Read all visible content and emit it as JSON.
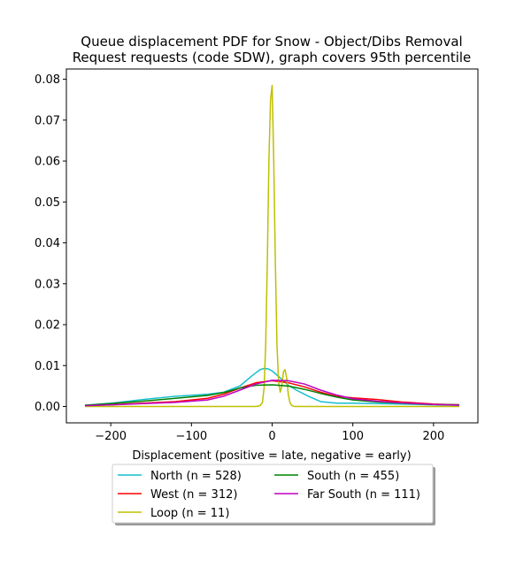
{
  "chart_data": {
    "type": "line",
    "title": "Queue displacement PDF for Snow - Object/Dibs Removal\nRequest  requests (code SDW), graph covers 95th percentile",
    "xlabel": "Displacement (positive = late, negative = early)",
    "ylabel": "",
    "xlim": [
      -255,
      255
    ],
    "ylim": [
      -0.004,
      0.0825
    ],
    "x_ticks": [
      -200,
      -100,
      0,
      100,
      200
    ],
    "x_tick_labels": [
      "−200",
      "−100",
      "0",
      "100",
      "200"
    ],
    "y_ticks": [
      0.0,
      0.01,
      0.02,
      0.03,
      0.04,
      0.05,
      0.06,
      0.07,
      0.08
    ],
    "y_tick_labels": [
      "0.00",
      "0.01",
      "0.02",
      "0.03",
      "0.04",
      "0.05",
      "0.06",
      "0.07",
      "0.08"
    ],
    "grid": false,
    "legend_placement": "below",
    "series": [
      {
        "name": "North (n = 528)",
        "color": "#17becf",
        "x": [
          -232,
          -200,
          -160,
          -120,
          -80,
          -60,
          -40,
          -25,
          -15,
          -10,
          -5,
          0,
          10,
          20,
          30,
          45,
          60,
          80,
          100,
          130,
          160,
          200,
          232
        ],
        "y": [
          0.0003,
          0.0008,
          0.0017,
          0.0025,
          0.003,
          0.0035,
          0.005,
          0.0075,
          0.009,
          0.0093,
          0.0092,
          0.0087,
          0.007,
          0.0052,
          0.004,
          0.0025,
          0.0012,
          0.0008,
          0.0008,
          0.0007,
          0.0006,
          0.0004,
          0.0003
        ]
      },
      {
        "name": "West (n = 312)",
        "color": "#ff0000",
        "x": [
          -232,
          -200,
          -160,
          -120,
          -80,
          -60,
          -40,
          -20,
          0,
          20,
          40,
          60,
          80,
          100,
          130,
          160,
          200,
          232
        ],
        "y": [
          0.0002,
          0.0004,
          0.0008,
          0.0012,
          0.002,
          0.003,
          0.0045,
          0.0058,
          0.0063,
          0.0058,
          0.0048,
          0.0035,
          0.0025,
          0.0021,
          0.0017,
          0.0011,
          0.0006,
          0.0004
        ]
      },
      {
        "name": "Loop (n = 11)",
        "color": "#bfbf00",
        "x": [
          -232,
          -100,
          -30,
          -20,
          -15,
          -12,
          -10,
          -8,
          -6,
          -4,
          -2,
          0,
          2,
          4,
          6,
          8,
          10,
          12,
          14,
          16,
          18,
          20,
          22,
          24,
          26,
          28,
          32,
          50,
          100,
          232
        ],
        "y": [
          0.0,
          0.0,
          0.0,
          0.0,
          0.0002,
          0.001,
          0.0045,
          0.015,
          0.035,
          0.06,
          0.075,
          0.0785,
          0.06,
          0.035,
          0.015,
          0.006,
          0.0035,
          0.005,
          0.0085,
          0.009,
          0.007,
          0.003,
          0.001,
          0.0003,
          0.0001,
          0.0,
          0.0,
          0.0,
          0.0,
          0.0
        ]
      },
      {
        "name": "South (n = 455)",
        "color": "#008000",
        "x": [
          -232,
          -200,
          -160,
          -120,
          -80,
          -60,
          -40,
          -20,
          0,
          20,
          40,
          60,
          80,
          100,
          130,
          160,
          200,
          232
        ],
        "y": [
          0.0003,
          0.0007,
          0.0013,
          0.002,
          0.0027,
          0.0034,
          0.0045,
          0.0052,
          0.0053,
          0.005,
          0.0042,
          0.0032,
          0.0023,
          0.0016,
          0.0011,
          0.0008,
          0.0005,
          0.0004
        ]
      },
      {
        "name": "Far South (n = 111)",
        "color": "#bf00bf",
        "x": [
          -232,
          -200,
          -160,
          -120,
          -80,
          -60,
          -40,
          -20,
          0,
          20,
          40,
          60,
          80,
          100,
          130,
          160,
          200,
          232
        ],
        "y": [
          0.0002,
          0.0004,
          0.0007,
          0.001,
          0.0016,
          0.0025,
          0.004,
          0.0055,
          0.0064,
          0.0063,
          0.0055,
          0.004,
          0.0028,
          0.0019,
          0.0013,
          0.0009,
          0.0005,
          0.0003
        ]
      }
    ]
  }
}
